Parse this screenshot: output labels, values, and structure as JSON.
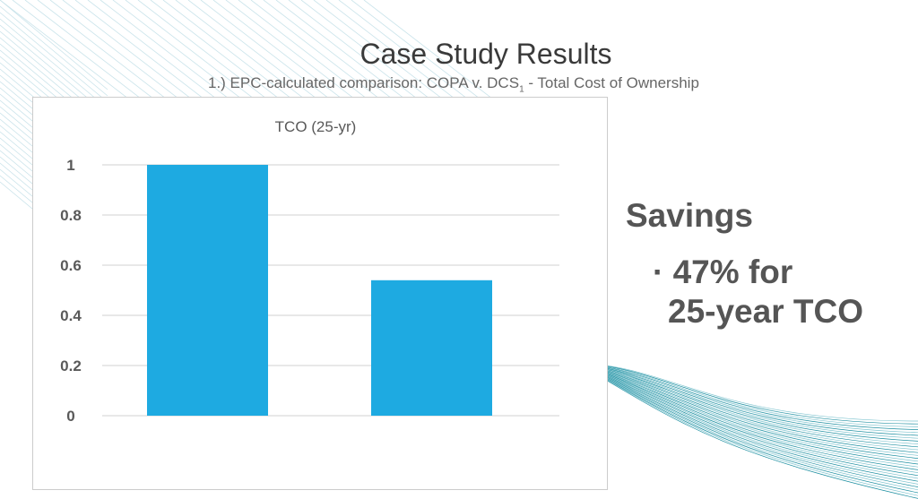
{
  "slide": {
    "title": "Case Study Results",
    "subtitle_main": "1.) EPC-calculated comparison: COPA v. DCS",
    "subtitle_sub": "1",
    "subtitle_end": " - Total Cost of Ownership",
    "savings_heading": "Savings",
    "savings_bullet": "· 47% for",
    "savings_bullet_line2": "25-year TCO"
  },
  "colors": {
    "bar": "#1EAAE1",
    "grid": "#d9d9d9",
    "text": "#595959"
  },
  "chart_data": {
    "type": "bar",
    "title": "TCO (25-yr)",
    "categories": [
      "",
      ""
    ],
    "values": [
      1.0,
      0.54
    ],
    "ylim": [
      0,
      1
    ],
    "yticks": [
      "0",
      "0.2",
      "0.4",
      "0.6",
      "0.8",
      "1"
    ],
    "grid": true,
    "xlabel": "",
    "ylabel": ""
  }
}
